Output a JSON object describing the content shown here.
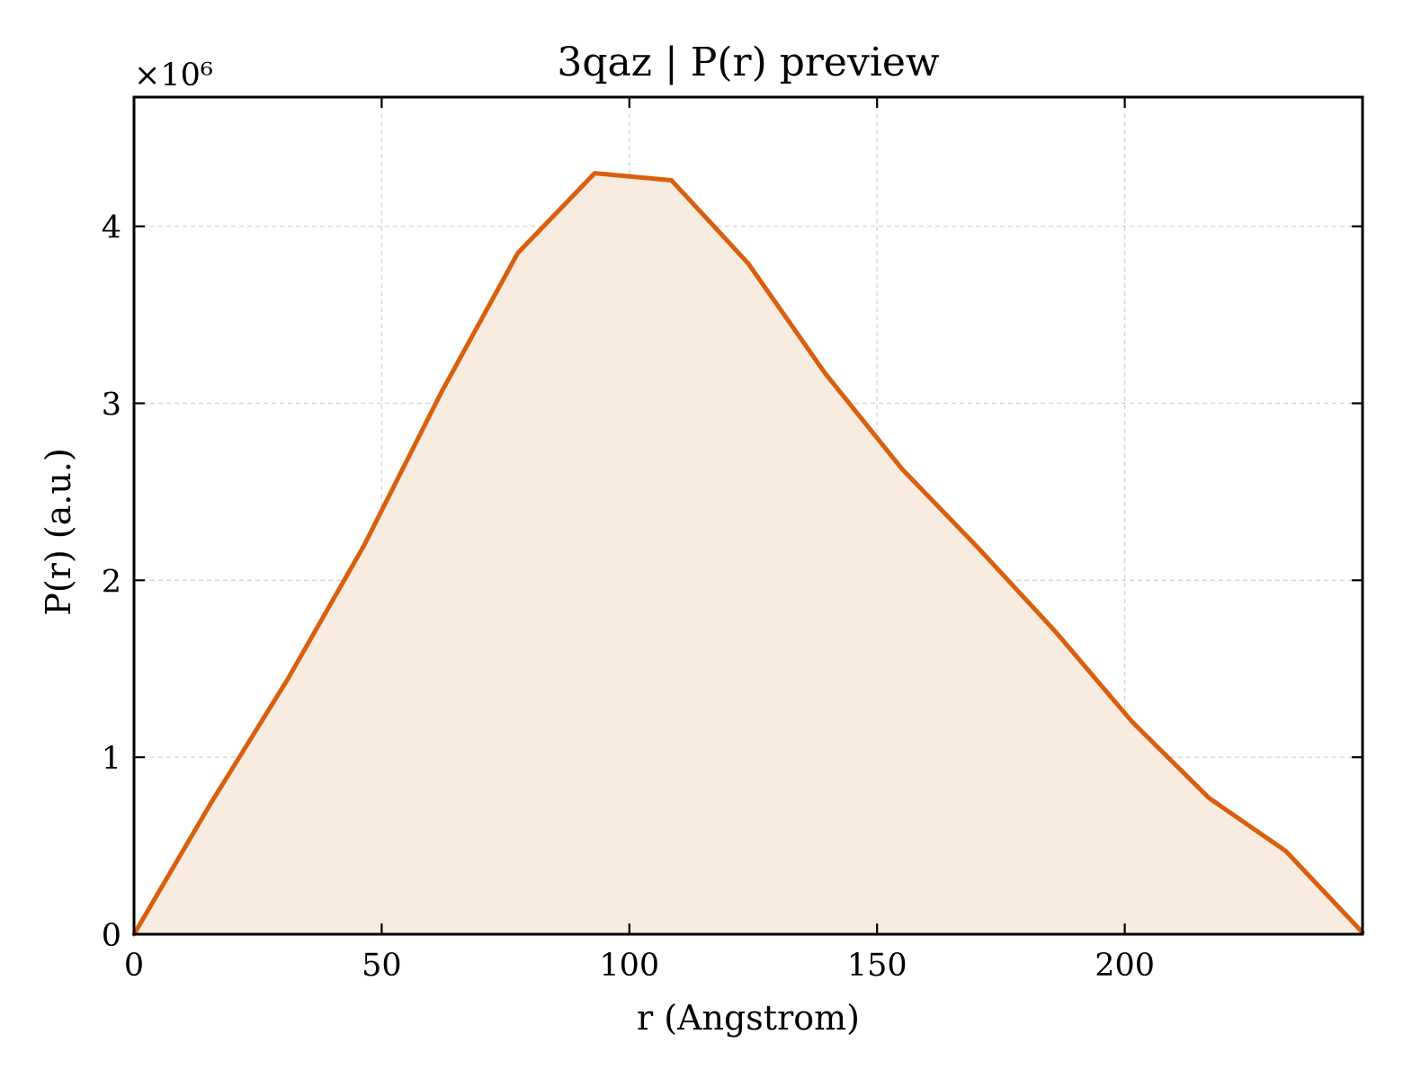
{
  "chart_data": {
    "type": "area",
    "title": "3qaz | P(r) preview",
    "xlabel": "r (Angstrom)",
    "ylabel": "P(r) (a.u.)",
    "y_scale_label": "×10⁶",
    "y_multiplier": 1000000,
    "xlim": [
      0,
      248
    ],
    "ylim": [
      0,
      4.73
    ],
    "x_ticks": [
      0,
      50,
      100,
      150,
      200
    ],
    "x_tick_labels": [
      "0",
      "50",
      "100",
      "150",
      "200"
    ],
    "y_ticks": [
      0,
      1,
      2,
      3,
      4
    ],
    "y_tick_labels": [
      "0",
      "1",
      "2",
      "3",
      "4"
    ],
    "grid": true,
    "legend": "none",
    "colors": {
      "line": "#d95f0e",
      "fill": "#f8ebe0"
    },
    "series": [
      {
        "x": [
          0,
          15.5,
          31,
          46.5,
          62,
          77.5,
          93,
          108.5,
          124,
          139.5,
          155,
          170.5,
          186,
          201.5,
          217,
          232.5,
          248
        ],
        "y": [
          0,
          0.74,
          1.44,
          2.2,
          3.06,
          3.85,
          4.3,
          4.26,
          3.79,
          3.17,
          2.63,
          2.18,
          1.71,
          1.2,
          0.77,
          0.47,
          0.01
        ]
      }
    ]
  }
}
